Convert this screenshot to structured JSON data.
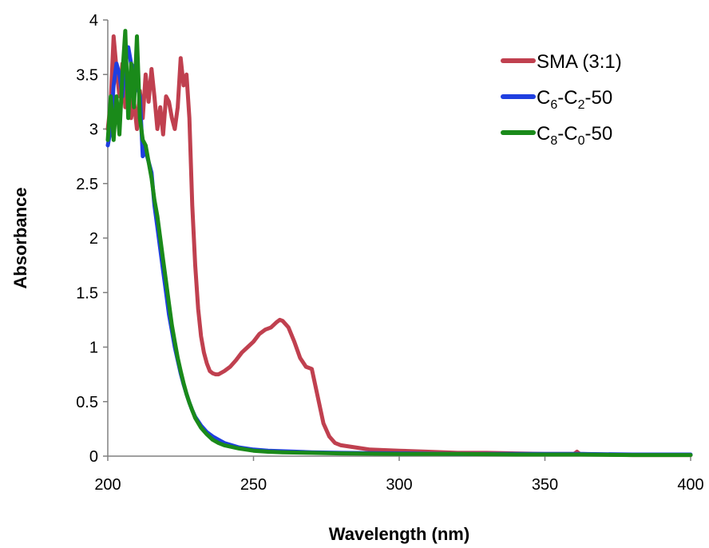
{
  "chart_data": {
    "type": "line",
    "xlabel": "Wavelength (nm)",
    "ylabel": "Absorbance",
    "xlim": [
      200,
      400
    ],
    "ylim": [
      0,
      4
    ],
    "x_ticks": [
      "200",
      "250",
      "300",
      "350",
      "400"
    ],
    "y_ticks": [
      "0",
      "0.5",
      "1",
      "1.5",
      "2",
      "2.5",
      "3",
      "3.5",
      "4"
    ],
    "grid": false,
    "legend_position": "top-right",
    "series": [
      {
        "name": "SMA (3:1)",
        "name_parts": {
          "base": "SMA (3:1)"
        },
        "color": "#c0404f",
        "x": [
          200,
          201,
          202,
          203,
          204,
          205,
          206,
          207,
          208,
          209,
          210,
          211,
          212,
          213,
          214,
          215,
          216,
          217,
          218,
          219,
          220,
          221,
          222,
          223,
          224,
          225,
          226,
          227,
          228,
          229,
          230,
          231,
          232,
          233,
          234,
          235,
          236,
          237,
          238,
          240,
          242,
          244,
          246,
          248,
          250,
          252,
          254,
          256,
          258,
          259,
          260,
          262,
          264,
          266,
          268,
          270,
          272,
          274,
          276,
          278,
          280,
          285,
          290,
          300,
          310,
          320,
          330,
          340,
          350,
          360,
          361,
          362,
          370,
          380,
          390,
          400
        ],
        "y": [
          3.0,
          3.25,
          3.85,
          3.55,
          3.3,
          3.6,
          3.2,
          3.45,
          3.1,
          3.25,
          3.0,
          3.35,
          3.1,
          3.5,
          3.25,
          3.55,
          3.3,
          3.0,
          3.2,
          2.95,
          3.3,
          3.25,
          3.1,
          3.0,
          3.2,
          3.65,
          3.4,
          3.5,
          3.1,
          2.3,
          1.75,
          1.35,
          1.1,
          0.95,
          0.85,
          0.78,
          0.76,
          0.75,
          0.75,
          0.78,
          0.82,
          0.88,
          0.95,
          1.0,
          1.05,
          1.12,
          1.16,
          1.18,
          1.23,
          1.25,
          1.24,
          1.18,
          1.05,
          0.9,
          0.82,
          0.8,
          0.55,
          0.3,
          0.18,
          0.12,
          0.1,
          0.08,
          0.06,
          0.05,
          0.04,
          0.03,
          0.03,
          0.025,
          0.02,
          0.02,
          0.04,
          0.02,
          0.015,
          0.01,
          0.01,
          0.01
        ]
      },
      {
        "name": "C6-C2-50",
        "name_parts": {
          "base": "C",
          "sub1": "6",
          "mid": "-C",
          "sub2": "2",
          "tail": "-50"
        },
        "color": "#1f3fe0",
        "x": [
          200,
          201,
          202,
          203,
          204,
          205,
          206,
          207,
          208,
          209,
          210,
          211,
          212,
          213,
          214,
          215,
          216,
          217,
          218,
          219,
          220,
          221,
          222,
          223,
          224,
          225,
          226,
          227,
          228,
          229,
          230,
          232,
          234,
          236,
          238,
          240,
          245,
          250,
          255,
          260,
          270,
          280,
          300,
          320,
          340,
          360,
          362,
          380,
          400
        ],
        "y": [
          2.85,
          3.0,
          3.4,
          3.6,
          3.5,
          3.3,
          3.7,
          3.75,
          3.6,
          3.55,
          3.4,
          3.3,
          2.75,
          2.8,
          2.7,
          2.6,
          2.3,
          2.1,
          1.9,
          1.7,
          1.5,
          1.3,
          1.15,
          1.0,
          0.88,
          0.76,
          0.66,
          0.57,
          0.49,
          0.42,
          0.36,
          0.28,
          0.22,
          0.18,
          0.15,
          0.12,
          0.08,
          0.06,
          0.05,
          0.045,
          0.035,
          0.03,
          0.025,
          0.02,
          0.02,
          0.02,
          0.02,
          0.015,
          0.015
        ]
      },
      {
        "name": "C8-C0-50",
        "name_parts": {
          "base": "C",
          "sub1": "8",
          "mid": "-C",
          "sub2": "0",
          "tail": "-50"
        },
        "color": "#1a8a1a",
        "x": [
          200,
          201,
          202,
          203,
          204,
          205,
          206,
          207,
          208,
          209,
          210,
          211,
          212,
          213,
          214,
          215,
          216,
          217,
          218,
          219,
          220,
          221,
          222,
          223,
          224,
          225,
          226,
          227,
          228,
          229,
          230,
          232,
          234,
          236,
          238,
          240,
          245,
          250,
          255,
          260,
          270,
          280,
          300,
          320,
          340,
          360,
          362,
          380,
          400
        ],
        "y": [
          2.9,
          3.3,
          2.9,
          3.3,
          2.95,
          3.5,
          3.9,
          3.1,
          3.6,
          3.2,
          3.85,
          3.1,
          2.9,
          2.85,
          2.7,
          2.55,
          2.35,
          2.2,
          2.0,
          1.8,
          1.6,
          1.4,
          1.2,
          1.05,
          0.9,
          0.78,
          0.67,
          0.57,
          0.49,
          0.42,
          0.35,
          0.26,
          0.2,
          0.15,
          0.12,
          0.1,
          0.07,
          0.05,
          0.04,
          0.035,
          0.03,
          0.025,
          0.02,
          0.02,
          0.015,
          0.015,
          0.015,
          0.01,
          0.01
        ]
      }
    ]
  }
}
